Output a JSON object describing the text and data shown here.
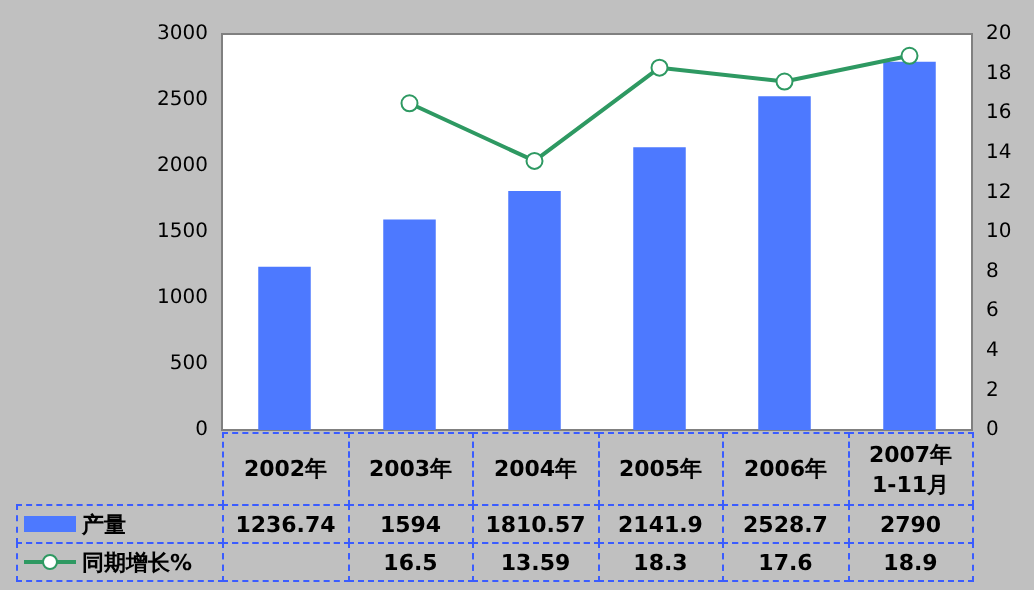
{
  "chart_data": {
    "type": "bar",
    "categories": [
      "2002年",
      "2003年",
      "2004年",
      "2005年",
      "2006年",
      "2007年\n1-11月"
    ],
    "series": [
      {
        "name": "产量",
        "color": "#4d79ff",
        "values": [
          1236.74,
          1594,
          1810.57,
          2141.9,
          2528.7,
          2790
        ]
      },
      {
        "name": "同期增长%",
        "type": "line",
        "axis": "y2",
        "color": "#2e9962",
        "values": [
          null,
          16.5,
          13.59,
          18.3,
          17.6,
          18.9
        ]
      }
    ],
    "ylim": [
      0,
      3000
    ],
    "yticks": [
      0,
      500,
      1000,
      1500,
      2000,
      2500,
      3000
    ],
    "y2lim": [
      0,
      20
    ],
    "y2ticks": [
      0,
      2,
      4,
      6,
      8,
      10,
      12,
      14,
      16,
      18,
      20
    ],
    "grid": false,
    "legend": "bottom",
    "marker": "circle",
    "line_style": "solid",
    "data_labels": true
  }
}
